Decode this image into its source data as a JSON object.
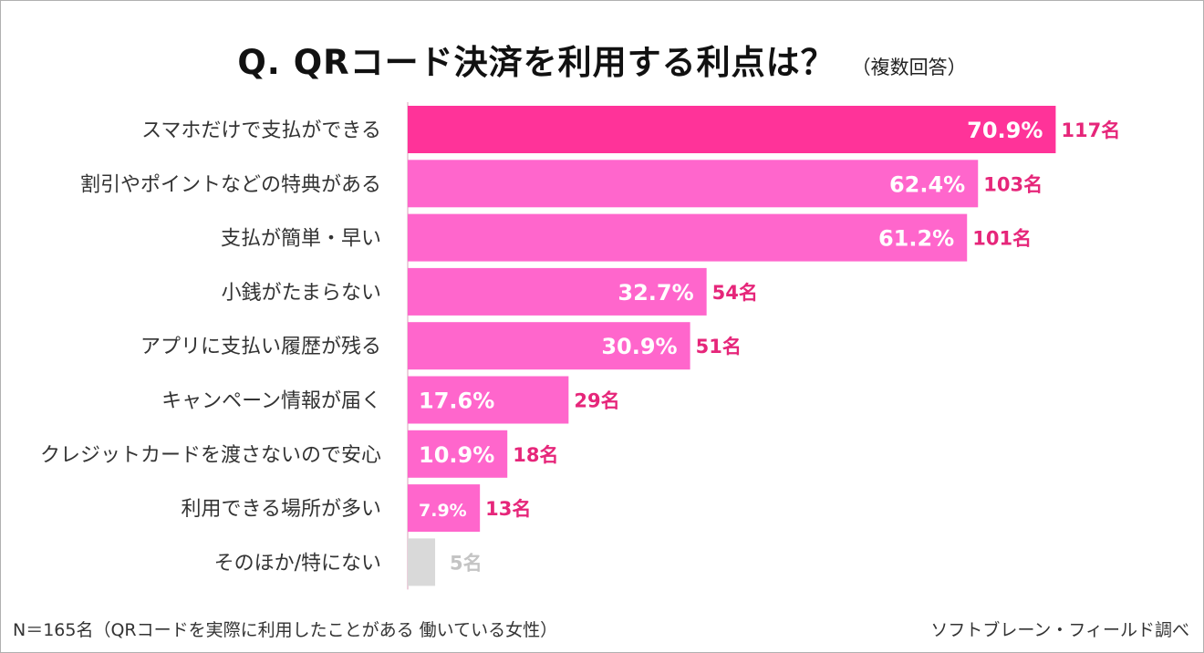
{
  "chart_data": {
    "type": "bar",
    "orientation": "horizontal",
    "title": "Q.  QRコード決済を利用する利点は？",
    "subtitle": "（複数回答）",
    "xlim": [
      0,
      100
    ],
    "grid": false,
    "categories": [
      "スマホだけで支払ができる",
      "割引やポイントなどの特典がある",
      "支払が簡単・早い",
      "小銭がたまらない",
      "アプリに支払い履歴が残る",
      "キャンペーン情報が届く",
      "クレジットカードを渡さないので安心",
      "利用できる場所が多い",
      "そのほか/特にない"
    ],
    "values": [
      70.9,
      62.4,
      61.2,
      32.7,
      30.9,
      17.6,
      10.9,
      7.9,
      3.0
    ],
    "value_labels": [
      "70.9%",
      "62.4%",
      "61.2%",
      "32.7%",
      "30.9%",
      "17.6%",
      "10.9%",
      "7.9%",
      ""
    ],
    "counts": [
      "117名",
      "103名",
      "101名",
      "54名",
      "51名",
      "29名",
      "18名",
      "13名",
      "5名"
    ],
    "colors": [
      "#ff3399",
      "#ff66cc",
      "#ff66cc",
      "#ff66cc",
      "#ff66cc",
      "#ff66cc",
      "#ff66cc",
      "#ff66cc",
      "#d9d9d9"
    ],
    "count_color": "#e6267a",
    "count_color_other": "#c4c4c4"
  },
  "footer": {
    "note": "N＝165名（QRコードを実際に利用したことがある 働いている女性）",
    "source": "ソフトブレーン・フィールド調べ"
  }
}
